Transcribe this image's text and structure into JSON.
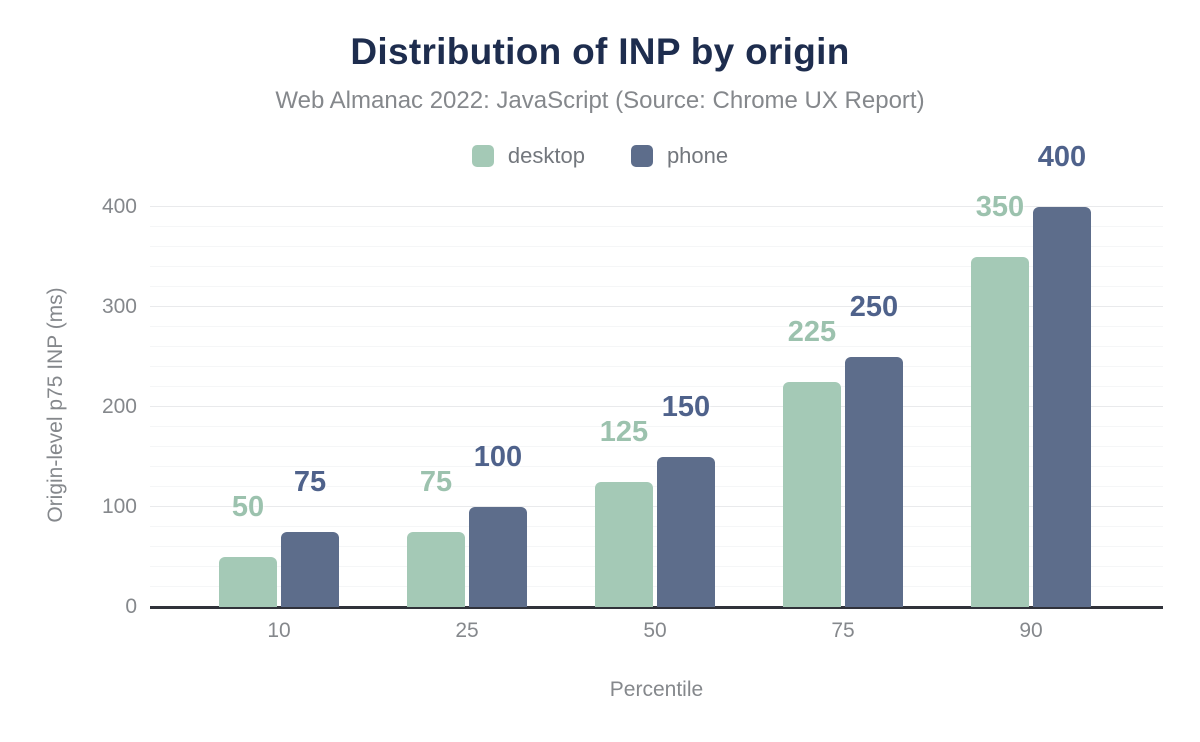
{
  "chart": {
    "title": "Distribution of INP by origin",
    "subtitle": "Web Almanac 2022: JavaScript (Source: Chrome UX Report)",
    "x_axis_label": "Percentile",
    "y_axis_label": "Origin-level p75 INP (ms)"
  },
  "chart_data": {
    "type": "bar",
    "title": "Distribution of INP by origin",
    "subtitle": "Web Almanac 2022: JavaScript (Source: Chrome UX Report)",
    "xlabel": "Percentile",
    "ylabel": "Origin-level p75 INP (ms)",
    "categories": [
      "10",
      "25",
      "50",
      "75",
      "90"
    ],
    "series": [
      {
        "name": "desktop",
        "color": "#a4c9b6",
        "label_color": "#9cc2ae",
        "values": [
          50,
          75,
          125,
          225,
          350
        ]
      },
      {
        "name": "phone",
        "color": "#5d6d8b",
        "label_color": "#4f628b",
        "values": [
          75,
          100,
          150,
          250,
          400
        ]
      }
    ],
    "ylim": [
      0,
      400
    ],
    "y_ticks": [
      0,
      100,
      200,
      300,
      400
    ],
    "minor_grid_step": 20,
    "major_grid_step": 100,
    "grid": true,
    "legend_position": "top",
    "data_labels": true
  },
  "colors": {
    "title": "#1e2d4e",
    "muted_text": "#85888c",
    "legend_text": "#73777d",
    "axis_line": "#30323a",
    "major_gridline": "#e9eaec",
    "minor_gridline": "#f5f6f7",
    "background": "#ffffff"
  }
}
